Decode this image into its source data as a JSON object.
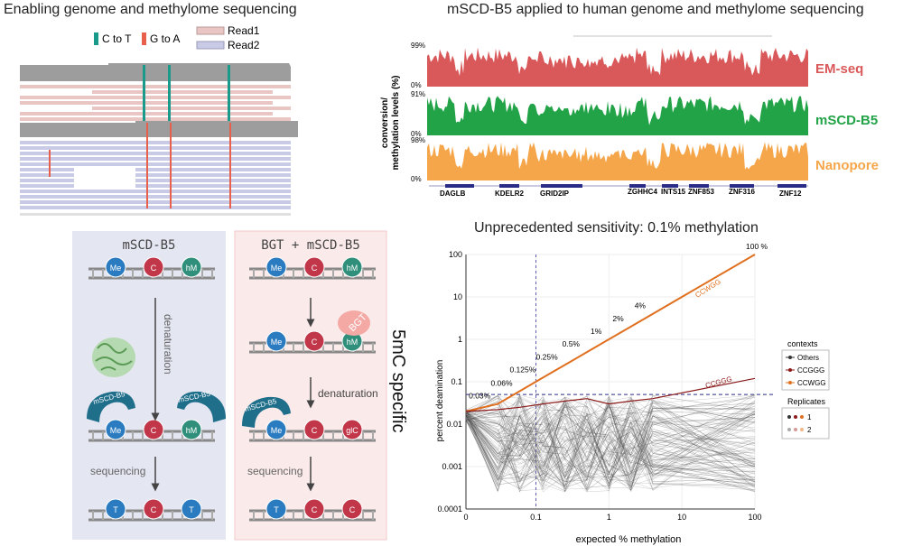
{
  "panel_tl": {
    "title": "Enabling genome and methylome sequencing",
    "legend": {
      "c_to_t": "C to T",
      "g_to_a": "G to A",
      "read1": "Read1",
      "read2": "Read2",
      "colors": {
        "c_to_t": "#1a9a8a",
        "g_to_a": "#e8604c",
        "read1": "#e9c6c4",
        "read2": "#c9cbe6"
      }
    }
  },
  "panel_tr": {
    "title": "mSCD-B5 applied to human genome and methylome sequencing",
    "ylabel_line1": "conversion/",
    "ylabel_line2": "methylation levels (%)",
    "tracks": [
      {
        "label": "EM-seq",
        "max": "99%",
        "min": "0%",
        "color": "#d9595b"
      },
      {
        "label": "mSCD-B5",
        "max": "91%",
        "min": "0%",
        "color": "#22a347"
      },
      {
        "label": "Nanopore",
        "max": "98%",
        "min": "0%",
        "color": "#f5a64a"
      }
    ],
    "genes": [
      "DAGLB",
      "KDELR2",
      "GRID2IP",
      "ZGHHC4",
      "INTS15",
      "ZNF853",
      "ZNF316",
      "ZNF12"
    ]
  },
  "panel_bl": {
    "left_title": "mSCD-B5",
    "right_title": "BGT + mSCD-B5",
    "side_label": "5mC specific",
    "nuc": {
      "me": "Me",
      "c": "C",
      "hm": "hM",
      "glc": "glC",
      "t": "T"
    },
    "enzyme": "mSCD-B5",
    "bgt": "BGT",
    "step_denaturation": "denaturation",
    "step_sequencing": "sequencing"
  },
  "chart_data": {
    "type": "line",
    "title": "Unprecedented sensitivity: 0.1% methylation",
    "xlabel": "expected % methylation",
    "ylabel": "percent deamination",
    "xscale": "log",
    "yscale": "log",
    "xlim": [
      0.01,
      100
    ],
    "ylim": [
      0.0001,
      100
    ],
    "x": [
      0.01,
      0.03,
      0.06,
      0.125,
      0.25,
      0.5,
      1,
      2,
      4,
      100
    ],
    "xticks": [
      "0",
      "0.1",
      "1",
      "10",
      "100"
    ],
    "yticks": [
      "0.0001",
      "0.001",
      "0.01",
      "0.1",
      "1",
      "10",
      "100"
    ],
    "reference_lines": {
      "vertical_x": 0.1,
      "horizontal_y": 0.05
    },
    "series": [
      {
        "name": "CCWGG",
        "values": [
          0.02,
          0.03,
          0.06,
          0.125,
          0.25,
          0.5,
          1,
          2,
          4,
          100
        ]
      },
      {
        "name": "CCGGG",
        "values": [
          0.02,
          0.022,
          0.025,
          0.03,
          0.035,
          0.04,
          0.03,
          0.035,
          0.04,
          0.12
        ]
      }
    ],
    "point_labels": [
      "0.03%",
      "0.06%",
      "0.125%",
      "0.25%",
      "0.5%",
      "1%",
      "2%",
      "4%",
      "100 %"
    ],
    "series_labels": [
      "CCWGG",
      "CCGGG"
    ],
    "legend": {
      "contexts_title": "contexts",
      "contexts": [
        "Others",
        "CCGGG",
        "CCWGG"
      ],
      "replicates_title": "Replicates",
      "replicates": [
        "1",
        "2"
      ],
      "colors": {
        "Others": "#333333",
        "CCGGG": "#8b1a1a",
        "CCWGG": "#e07020"
      }
    }
  }
}
